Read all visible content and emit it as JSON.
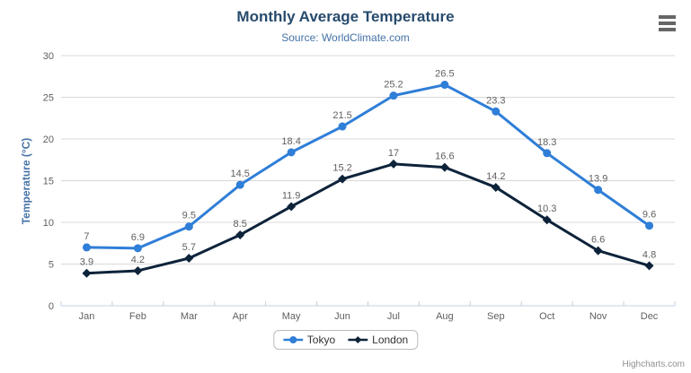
{
  "header": {
    "title": "Monthly Average Temperature",
    "subtitle": "Source: WorldClimate.com"
  },
  "menu": {
    "icon": "hamburger-menu-icon"
  },
  "credits": {
    "label": "Highcharts.com"
  },
  "colors": {
    "title": "#274b6d",
    "subtitle": "#4572a7",
    "yaxis_title": "#4572a7",
    "grid": "#d8d8d8",
    "axis_line": "#c0d0e0",
    "tick_label": "#606060",
    "data_label": "#606060",
    "legend_text": "#333333",
    "credits_text": "#909090",
    "burger_icon": "#666666",
    "tokyo": "#2f7ed8",
    "london": "#0d233a"
  },
  "chart_data": {
    "type": "line",
    "title": "Monthly Average Temperature",
    "subtitle": "Source: WorldClimate.com",
    "categories": [
      "Jan",
      "Feb",
      "Mar",
      "Apr",
      "May",
      "Jun",
      "Jul",
      "Aug",
      "Sep",
      "Oct",
      "Nov",
      "Dec"
    ],
    "xlabel": "",
    "ylabel": "Temperature (°C)",
    "ylim": [
      0,
      30
    ],
    "ytick_interval": 5,
    "yticks": [
      0,
      5,
      10,
      15,
      20,
      25,
      30
    ],
    "grid": true,
    "legend_position": "bottom",
    "data_labels": true,
    "series": [
      {
        "name": "Tokyo",
        "color": "#2f7ed8",
        "marker": "circle",
        "values": [
          7,
          6.9,
          9.5,
          14.5,
          18.4,
          21.5,
          25.2,
          26.5,
          23.3,
          18.3,
          13.9,
          9.6
        ]
      },
      {
        "name": "London",
        "color": "#0d233a",
        "marker": "diamond",
        "values": [
          3.9,
          4.2,
          5.7,
          8.5,
          11.9,
          15.2,
          17,
          16.6,
          14.2,
          10.3,
          6.6,
          4.8
        ]
      }
    ]
  }
}
